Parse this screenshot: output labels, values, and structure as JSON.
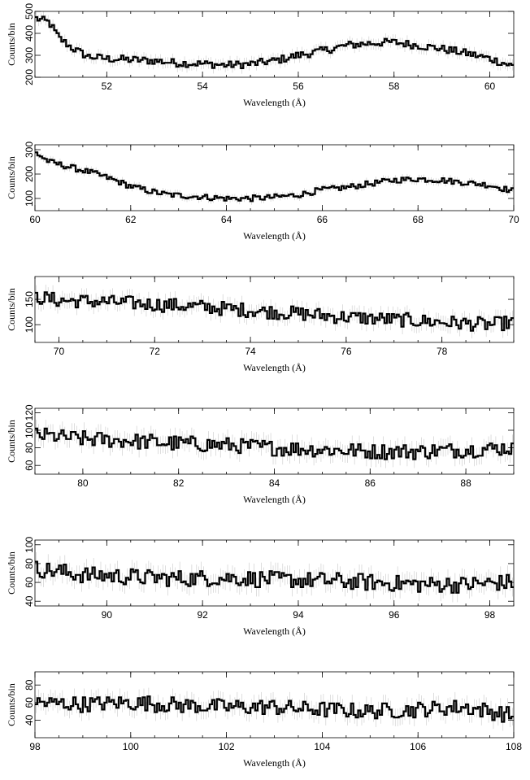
{
  "chart_data": [
    {
      "type": "line",
      "xlabel": "Wavelength (Å)",
      "ylabel": "Counts/bin",
      "xlim": [
        50.5,
        60.5
      ],
      "ylim": [
        200,
        500
      ],
      "xticks": [
        52,
        54,
        56,
        58,
        60
      ],
      "yticks": [
        200,
        300,
        400,
        500
      ],
      "anchors": [
        [
          50.5,
          470
        ],
        [
          50.8,
          450
        ],
        [
          51.0,
          380
        ],
        [
          51.3,
          330
        ],
        [
          51.6,
          295
        ],
        [
          52.0,
          285
        ],
        [
          52.5,
          280
        ],
        [
          53.0,
          275
        ],
        [
          53.5,
          265
        ],
        [
          54.0,
          262
        ],
        [
          54.5,
          255
        ],
        [
          55.0,
          260
        ],
        [
          55.5,
          275
        ],
        [
          56.0,
          300
        ],
        [
          56.5,
          320
        ],
        [
          57.0,
          345
        ],
        [
          57.5,
          355
        ],
        [
          58.0,
          360
        ],
        [
          58.5,
          345
        ],
        [
          59.0,
          330
        ],
        [
          59.5,
          310
        ],
        [
          60.0,
          285
        ],
        [
          60.5,
          250
        ]
      ],
      "noise": 18,
      "error": 25,
      "series": [
        {
          "values": []
        }
      ]
    },
    {
      "type": "line",
      "xlabel": "Wavelength (Å)",
      "ylabel": "Counts/bin",
      "xlim": [
        60,
        70
      ],
      "ylim": [
        50,
        320
      ],
      "xticks": [
        60,
        62,
        64,
        66,
        68,
        70
      ],
      "yticks": [
        100,
        200,
        300
      ],
      "anchors": [
        [
          60.0,
          290
        ],
        [
          60.3,
          250
        ],
        [
          60.8,
          225
        ],
        [
          61.2,
          205
        ],
        [
          61.6,
          180
        ],
        [
          62.0,
          150
        ],
        [
          62.4,
          130
        ],
        [
          62.8,
          115
        ],
        [
          63.2,
          110
        ],
        [
          63.6,
          105
        ],
        [
          64.0,
          100
        ],
        [
          64.5,
          100
        ],
        [
          65.0,
          105
        ],
        [
          65.5,
          115
        ],
        [
          66.0,
          135
        ],
        [
          66.5,
          145
        ],
        [
          67.0,
          160
        ],
        [
          67.5,
          175
        ],
        [
          68.0,
          180
        ],
        [
          68.5,
          175
        ],
        [
          69.0,
          165
        ],
        [
          69.5,
          155
        ],
        [
          70.0,
          130
        ]
      ],
      "noise": 12,
      "error": 15,
      "series": [
        {
          "values": []
        }
      ]
    },
    {
      "type": "line",
      "xlabel": "Wavelength (Å)",
      "ylabel": "Counts/bin",
      "xlim": [
        69.5,
        79.5
      ],
      "ylim": [
        65,
        195
      ],
      "xticks": [
        70,
        72,
        74,
        76,
        78
      ],
      "yticks": [
        100,
        150
      ],
      "anchors": [
        [
          69.5,
          155
        ],
        [
          70.0,
          148
        ],
        [
          71.0,
          145
        ],
        [
          72.0,
          140
        ],
        [
          73.0,
          135
        ],
        [
          74.0,
          128
        ],
        [
          75.0,
          122
        ],
        [
          76.0,
          115
        ],
        [
          77.0,
          110
        ],
        [
          78.0,
          105
        ],
        [
          79.0,
          100
        ],
        [
          79.5,
          105
        ]
      ],
      "noise": 14,
      "error": 15,
      "series": [
        {
          "values": []
        }
      ]
    },
    {
      "type": "line",
      "xlabel": "Wavelength (Å)",
      "ylabel": "Counts/bin",
      "xlim": [
        79,
        89
      ],
      "ylim": [
        50,
        125
      ],
      "xticks": [
        80,
        82,
        84,
        86,
        88
      ],
      "yticks": [
        60,
        80,
        100,
        120
      ],
      "anchors": [
        [
          79.0,
          95
        ],
        [
          80.0,
          90
        ],
        [
          81.0,
          88
        ],
        [
          82.0,
          85
        ],
        [
          83.0,
          83
        ],
        [
          84.0,
          80
        ],
        [
          85.0,
          78
        ],
        [
          86.0,
          76
        ],
        [
          87.0,
          76
        ],
        [
          88.0,
          78
        ],
        [
          89.0,
          80
        ]
      ],
      "noise": 9,
      "error": 10,
      "series": [
        {
          "values": []
        }
      ]
    },
    {
      "type": "line",
      "xlabel": "Wavelength (Å)",
      "ylabel": "Counts/bin",
      "xlim": [
        88.5,
        98.5
      ],
      "ylim": [
        35,
        105
      ],
      "xticks": [
        90,
        92,
        94,
        96,
        98
      ],
      "yticks": [
        40,
        60,
        80,
        100
      ],
      "anchors": [
        [
          88.5,
          75
        ],
        [
          89.5,
          68
        ],
        [
          90.5,
          66
        ],
        [
          91.5,
          64
        ],
        [
          92.5,
          65
        ],
        [
          93.5,
          63
        ],
        [
          94.5,
          62
        ],
        [
          95.5,
          60
        ],
        [
          96.5,
          58
        ],
        [
          97.5,
          58
        ],
        [
          98.5,
          60
        ]
      ],
      "noise": 9,
      "error": 10,
      "series": [
        {
          "values": []
        }
      ]
    },
    {
      "type": "line",
      "xlabel": "Wavelength (Å)",
      "ylabel": "Counts/bin",
      "xlim": [
        98,
        108
      ],
      "ylim": [
        20,
        95
      ],
      "xticks": [
        98,
        100,
        102,
        104,
        106,
        108
      ],
      "yticks": [
        40,
        60,
        80
      ],
      "anchors": [
        [
          98.0,
          60
        ],
        [
          99.0,
          58
        ],
        [
          100.0,
          60
        ],
        [
          101.0,
          57
        ],
        [
          102.0,
          55
        ],
        [
          103.0,
          55
        ],
        [
          104.0,
          52
        ],
        [
          105.0,
          50
        ],
        [
          106.0,
          52
        ],
        [
          107.0,
          55
        ],
        [
          108.0,
          45
        ]
      ],
      "noise": 9,
      "error": 10,
      "series": [
        {
          "values": []
        }
      ]
    }
  ]
}
